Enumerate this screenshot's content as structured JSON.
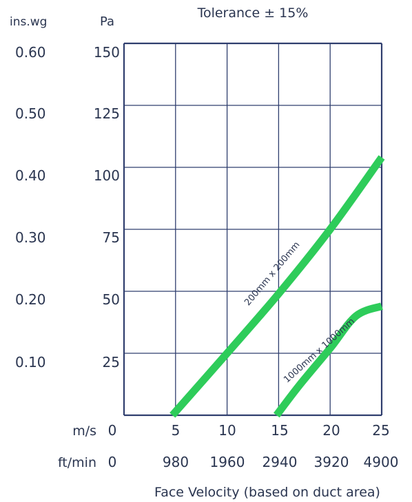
{
  "chart_data": {
    "type": "line",
    "title": "Tolerance ± 15%",
    "left_axis_unit": "ins.wg",
    "right_axis_unit": "Pa",
    "ins_wg_ticks": [
      "0.60",
      "0.50",
      "0.40",
      "0.30",
      "0.20",
      "0.10"
    ],
    "pa_ticks": [
      "150",
      "125",
      "100",
      "75",
      "50",
      "25",
      "0"
    ],
    "ylim": [
      0,
      150
    ],
    "xlim": [
      0,
      25
    ],
    "x_unit_ms": "m/s",
    "x_unit_ftmin": "ft/min",
    "x_ticks_ms": [
      "0",
      "5",
      "10",
      "15",
      "20",
      "25"
    ],
    "x_ticks_ftmin": [
      "0",
      "980",
      "1960",
      "2940",
      "3920",
      "4900"
    ],
    "xlabel": "Face Velocity (based on duct area)",
    "grid": true,
    "colors": {
      "curve": "#2ecc5a",
      "axis": "#2f3e6e",
      "grid": "#2f3e6e"
    },
    "series": [
      {
        "name": "200mm x 200mm",
        "x": [
          4.7,
          10,
          15,
          20,
          25
        ],
        "y": [
          0,
          25,
          49,
          75,
          104
        ]
      },
      {
        "name": "1000mm x 1000mm",
        "x": [
          14.8,
          17,
          20,
          22.5,
          25
        ],
        "y": [
          0,
          12,
          27,
          40,
          44
        ]
      }
    ]
  }
}
